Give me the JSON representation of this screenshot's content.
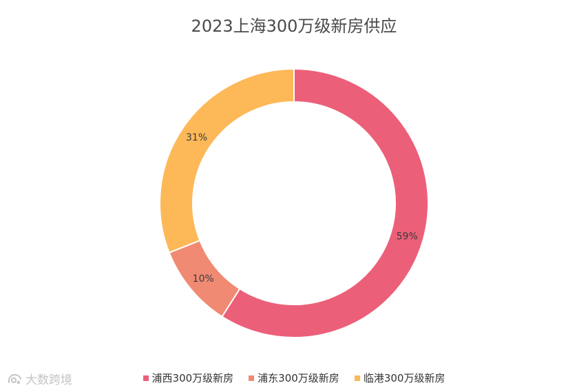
{
  "chart_data": {
    "type": "pie",
    "title": "2023上海300万级新房供应",
    "donut": true,
    "categories": [
      "浦西300万级新房",
      "浦东300万级新房",
      "临港300万级新房"
    ],
    "values": [
      59,
      10,
      31
    ],
    "labels": [
      "59%",
      "10%",
      "31%"
    ],
    "colors": [
      "#ec5f78",
      "#f08a72",
      "#fdb858"
    ],
    "legend_position": "bottom"
  },
  "watermark": {
    "text": "大数跨境"
  }
}
